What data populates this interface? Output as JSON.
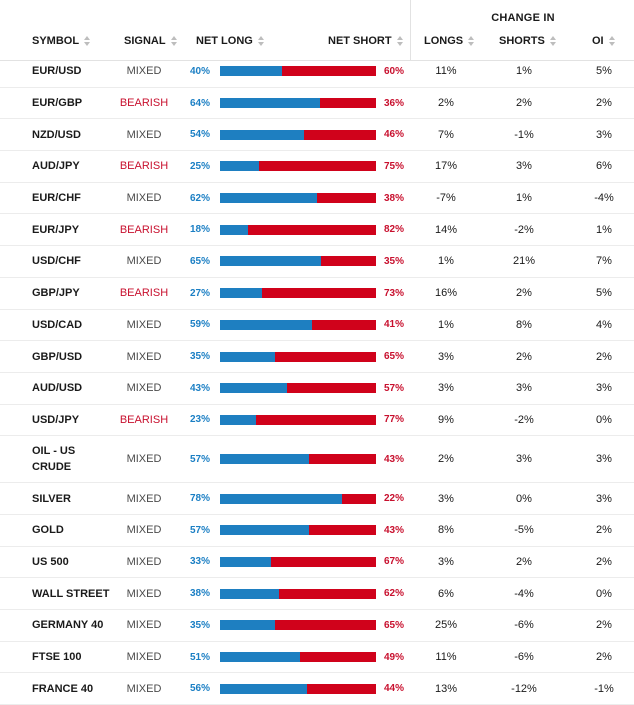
{
  "header": {
    "change_in": "CHANGE IN",
    "symbol": "SYMBOL",
    "signal": "SIGNAL",
    "net_long": "NET LONG",
    "net_short": "NET SHORT",
    "longs": "LONGS",
    "shorts": "SHORTS",
    "oi": "OI"
  },
  "colors": {
    "long": "#1e7fc1",
    "short": "#d0021b",
    "mixed": "#4a4a4a"
  },
  "rows": [
    {
      "symbol": "EUR/USD",
      "signal": "MIXED",
      "net_long": "40%",
      "net_short": "60%",
      "long_pct": 40,
      "longs": "11%",
      "shorts": "1%",
      "oi": "5%"
    },
    {
      "symbol": "EUR/GBP",
      "signal": "BEARISH",
      "net_long": "64%",
      "net_short": "36%",
      "long_pct": 64,
      "longs": "2%",
      "shorts": "2%",
      "oi": "2%"
    },
    {
      "symbol": "NZD/USD",
      "signal": "MIXED",
      "net_long": "54%",
      "net_short": "46%",
      "long_pct": 54,
      "longs": "7%",
      "shorts": "-1%",
      "oi": "3%"
    },
    {
      "symbol": "AUD/JPY",
      "signal": "BEARISH",
      "net_long": "25%",
      "net_short": "75%",
      "long_pct": 25,
      "longs": "17%",
      "shorts": "3%",
      "oi": "6%"
    },
    {
      "symbol": "EUR/CHF",
      "signal": "MIXED",
      "net_long": "62%",
      "net_short": "38%",
      "long_pct": 62,
      "longs": "-7%",
      "shorts": "1%",
      "oi": "-4%"
    },
    {
      "symbol": "EUR/JPY",
      "signal": "BEARISH",
      "net_long": "18%",
      "net_short": "82%",
      "long_pct": 18,
      "longs": "14%",
      "shorts": "-2%",
      "oi": "1%"
    },
    {
      "symbol": "USD/CHF",
      "signal": "MIXED",
      "net_long": "65%",
      "net_short": "35%",
      "long_pct": 65,
      "longs": "1%",
      "shorts": "21%",
      "oi": "7%"
    },
    {
      "symbol": "GBP/JPY",
      "signal": "BEARISH",
      "net_long": "27%",
      "net_short": "73%",
      "long_pct": 27,
      "longs": "16%",
      "shorts": "2%",
      "oi": "5%"
    },
    {
      "symbol": "USD/CAD",
      "signal": "MIXED",
      "net_long": "59%",
      "net_short": "41%",
      "long_pct": 59,
      "longs": "1%",
      "shorts": "8%",
      "oi": "4%"
    },
    {
      "symbol": "GBP/USD",
      "signal": "MIXED",
      "net_long": "35%",
      "net_short": "65%",
      "long_pct": 35,
      "longs": "3%",
      "shorts": "2%",
      "oi": "2%"
    },
    {
      "symbol": "AUD/USD",
      "signal": "MIXED",
      "net_long": "43%",
      "net_short": "57%",
      "long_pct": 43,
      "longs": "3%",
      "shorts": "3%",
      "oi": "3%"
    },
    {
      "symbol": "USD/JPY",
      "signal": "BEARISH",
      "net_long": "23%",
      "net_short": "77%",
      "long_pct": 23,
      "longs": "9%",
      "shorts": "-2%",
      "oi": "0%"
    },
    {
      "symbol": "OIL - US CRUDE",
      "signal": "MIXED",
      "net_long": "57%",
      "net_short": "43%",
      "long_pct": 57,
      "longs": "2%",
      "shorts": "3%",
      "oi": "3%",
      "tall": true
    },
    {
      "symbol": "SILVER",
      "signal": "MIXED",
      "net_long": "78%",
      "net_short": "22%",
      "long_pct": 78,
      "longs": "3%",
      "shorts": "0%",
      "oi": "3%"
    },
    {
      "symbol": "GOLD",
      "signal": "MIXED",
      "net_long": "57%",
      "net_short": "43%",
      "long_pct": 57,
      "longs": "8%",
      "shorts": "-5%",
      "oi": "2%"
    },
    {
      "symbol": "US 500",
      "signal": "MIXED",
      "net_long": "33%",
      "net_short": "67%",
      "long_pct": 33,
      "longs": "3%",
      "shorts": "2%",
      "oi": "2%"
    },
    {
      "symbol": "WALL STREET",
      "signal": "MIXED",
      "net_long": "38%",
      "net_short": "62%",
      "long_pct": 38,
      "longs": "6%",
      "shorts": "-4%",
      "oi": "0%"
    },
    {
      "symbol": "GERMANY 40",
      "signal": "MIXED",
      "net_long": "35%",
      "net_short": "65%",
      "long_pct": 35,
      "longs": "25%",
      "shorts": "-6%",
      "oi": "2%"
    },
    {
      "symbol": "FTSE 100",
      "signal": "MIXED",
      "net_long": "51%",
      "net_short": "49%",
      "long_pct": 51,
      "longs": "11%",
      "shorts": "-6%",
      "oi": "2%"
    },
    {
      "symbol": "FRANCE 40",
      "signal": "MIXED",
      "net_long": "56%",
      "net_short": "44%",
      "long_pct": 56,
      "longs": "13%",
      "shorts": "-12%",
      "oi": "-1%"
    }
  ]
}
